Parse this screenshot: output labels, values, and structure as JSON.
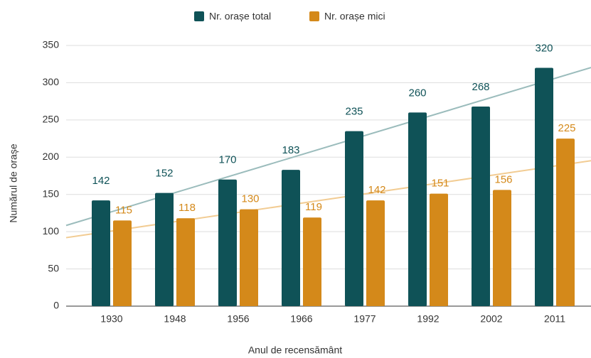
{
  "chart_data": {
    "type": "bar",
    "categories": [
      "1930",
      "1948",
      "1956",
      "1966",
      "1977",
      "1992",
      "2002",
      "2011"
    ],
    "series": [
      {
        "name": "Nr. orașe total",
        "color": "#0f5257",
        "trendline_color": "#9bbcbc",
        "values": [
          142,
          152,
          170,
          183,
          235,
          260,
          268,
          320
        ]
      },
      {
        "name": "Nr. orașe mici",
        "color": "#d4891a",
        "trendline_color": "#f2cc93",
        "values": [
          115,
          118,
          130,
          119,
          142,
          151,
          156,
          225
        ]
      }
    ],
    "x_label": "Anul de recensământ",
    "y_label": "Numărul de orașe",
    "ylim": [
      0,
      350
    ],
    "yticks": [
      0,
      50,
      100,
      150,
      200,
      250,
      300,
      350
    ],
    "grid": true,
    "trendline": true,
    "legend": "top"
  }
}
